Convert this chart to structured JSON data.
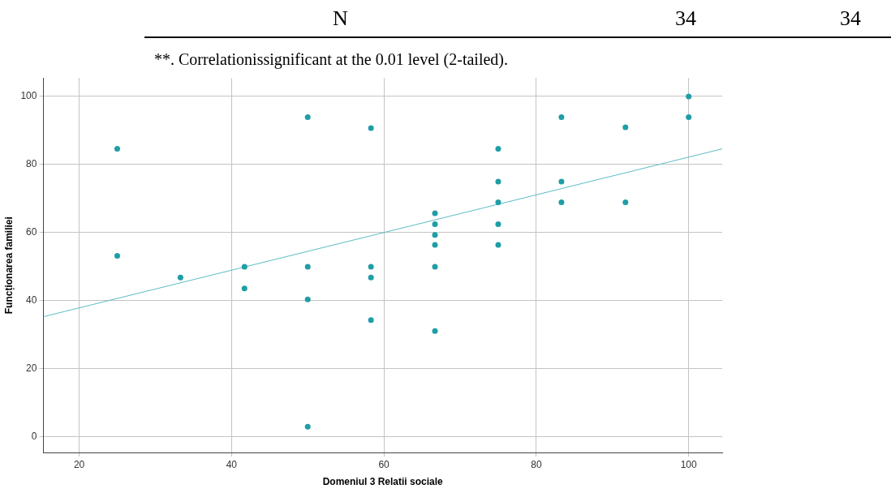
{
  "chart_data": {
    "type": "scatter",
    "xlabel": "Domeniul 3 Relatii sociale",
    "ylabel": "Funcționarea familiei",
    "annotations": [
      "N",
      "34",
      "34",
      "**. Correlationissignificant at the 0.01 level (2-tailed)."
    ],
    "xlim": [
      15.3,
      104.4
    ],
    "ylim": [
      -4.6,
      105.4
    ],
    "xticks": [
      20,
      40,
      60,
      80,
      100
    ],
    "yticks": [
      0,
      20,
      40,
      60,
      80,
      100
    ],
    "grid": true,
    "marker": "circle",
    "series": [
      {
        "color": "#1f9ea6",
        "x": [
          25,
          25,
          33.3,
          41.7,
          41.7,
          50,
          50,
          50,
          50,
          58.3,
          58.3,
          58.3,
          58.3,
          66.7,
          66.7,
          66.7,
          66.7,
          66.7,
          66.7,
          75,
          75,
          75,
          75,
          75,
          83.3,
          83.3,
          83.3,
          91.7,
          91.7,
          100,
          100
        ],
        "values": [
          84.6,
          53.2,
          46.8,
          50,
          43.6,
          93.9,
          50,
          40.4,
          3,
          90.7,
          50,
          46.8,
          34.3,
          65.7,
          62.5,
          59.3,
          56.4,
          50,
          31.1,
          84.6,
          75,
          68.9,
          62.5,
          56.4,
          93.9,
          75,
          68.9,
          90.9,
          68.9,
          100,
          93.9
        ]
      },
      {
        "type": "line",
        "color": "#5bbcc4",
        "x": [
          15.3,
          104.4
        ],
        "values": [
          35.3,
          84.6
        ],
        "marker": "none"
      }
    ]
  }
}
